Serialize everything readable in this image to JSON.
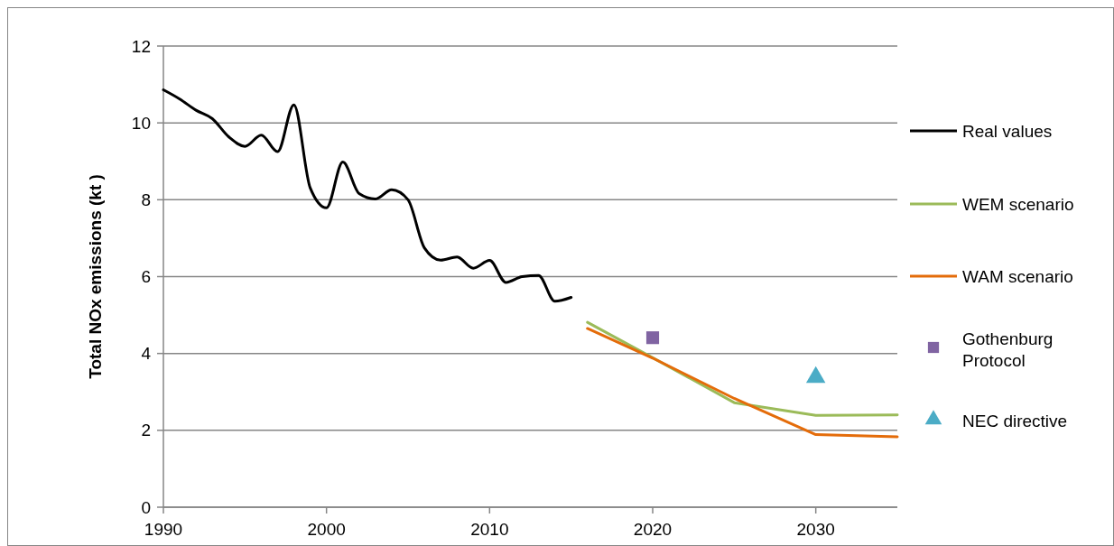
{
  "chart_data": {
    "type": "line",
    "ylabel": "Total NOx emissions (kt )",
    "xlim": [
      1990,
      2035
    ],
    "xticks": [
      1990,
      2000,
      2010,
      2020,
      2030
    ],
    "ylim": [
      0,
      12
    ],
    "yticks": [
      0,
      2,
      4,
      6,
      8,
      10,
      12
    ],
    "grid": "y",
    "legend": "right",
    "series": [
      {
        "name": "Real values",
        "color": "#000000",
        "marker": "none",
        "x": [
          1990,
          1991,
          1992,
          1993,
          1994,
          1995,
          1996,
          1997,
          1998,
          1999,
          2000,
          2001,
          2002,
          2003,
          2004,
          2005,
          2006,
          2007,
          2008,
          2009,
          2010,
          2011,
          2012,
          2013,
          2014,
          2015
        ],
        "values": [
          10.86,
          10.62,
          10.33,
          10.11,
          9.64,
          9.39,
          9.68,
          9.25,
          10.47,
          8.31,
          7.79,
          8.98,
          8.16,
          8.02,
          8.26,
          8.0,
          6.75,
          6.43,
          6.51,
          6.22,
          6.42,
          5.85,
          6.0,
          6.03,
          5.36,
          5.46
        ]
      },
      {
        "name": "WEM scenario",
        "color": "#9bbb59",
        "marker": "none",
        "x": [
          2016,
          2020,
          2025,
          2030,
          2035
        ],
        "values": [
          4.81,
          3.89,
          2.72,
          2.39,
          2.4
        ]
      },
      {
        "name": "WAM scenario",
        "color": "#e46c0a",
        "marker": "none",
        "x": [
          2016,
          2020,
          2025,
          2030,
          2035
        ],
        "values": [
          4.65,
          3.88,
          2.83,
          1.89,
          1.83
        ]
      },
      {
        "name": "Gothenburg Protocol",
        "type": "scatter",
        "color": "#8064a2",
        "marker": "square",
        "x": [
          2020
        ],
        "values": [
          4.41
        ]
      },
      {
        "name": "NEC directive",
        "type": "scatter",
        "color": "#4bacc6",
        "marker": "triangle",
        "x": [
          2030
        ],
        "values": [
          3.38
        ]
      }
    ]
  }
}
